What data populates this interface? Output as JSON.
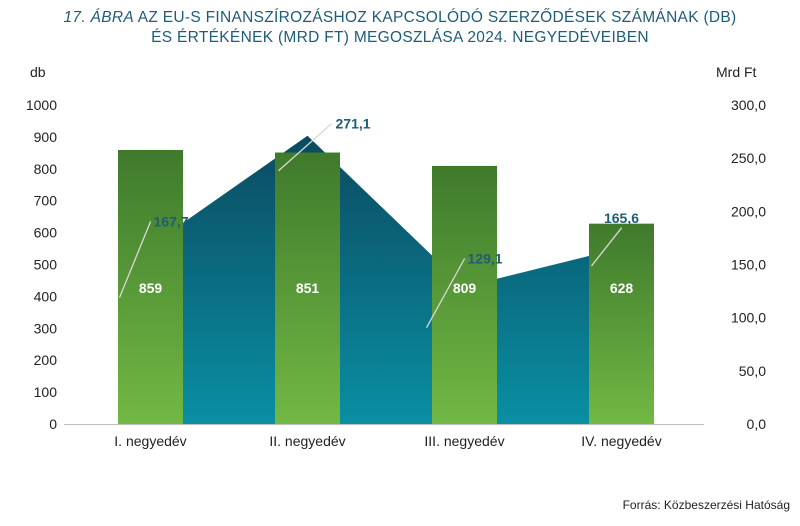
{
  "title": {
    "prefix": "17. ÁBRA",
    "line1": "AZ EU-S FINANSZÍROZÁSHOZ KAPCSOLÓDÓ SZERZŐDÉSEK SZÁMÁNAK (DB)",
    "line2": "ÉS ÉRTÉKÉNEK (MRD FT) MEGOSZLÁSA 2024. NEGYEDÉVEIBEN"
  },
  "left_unit": "db",
  "right_unit": "Mrd Ft",
  "source": "Forrás: Közbeszerzési Hatóság",
  "colors": {
    "title": "#1f5c77",
    "bar_top": "#3f7a2c",
    "bar_bottom": "#72b844",
    "area_top": "#0b4a60",
    "area_bottom": "#0a8fa3",
    "value_label": "#1f5c77"
  },
  "chart_data": {
    "type": "bar",
    "categories": [
      "I. negyedév",
      "II. negyedév",
      "III. negyedév",
      "IV. negyedév"
    ],
    "series": [
      {
        "kind": "bar",
        "axis": "left",
        "values": [
          859,
          851,
          809,
          628
        ],
        "labels": [
          "859",
          "851",
          "809",
          "628"
        ]
      },
      {
        "kind": "area",
        "axis": "right",
        "values": [
          167.7,
          271.1,
          129.1,
          165.6
        ],
        "labels": [
          "167,7",
          "271,1",
          "129,1",
          "165,6"
        ]
      }
    ],
    "y_left": {
      "min": 0,
      "max": 1000,
      "step": 100,
      "ticks": [
        "0",
        "100",
        "200",
        "300",
        "400",
        "500",
        "600",
        "700",
        "800",
        "900",
        "1000"
      ]
    },
    "y_right": {
      "min": 0,
      "max": 300,
      "step": 50,
      "ticks": [
        "0,0",
        "50,0",
        "100,0",
        "150,0",
        "200,0",
        "250,0",
        "300,0"
      ]
    },
    "grid": false,
    "legend": "none"
  }
}
